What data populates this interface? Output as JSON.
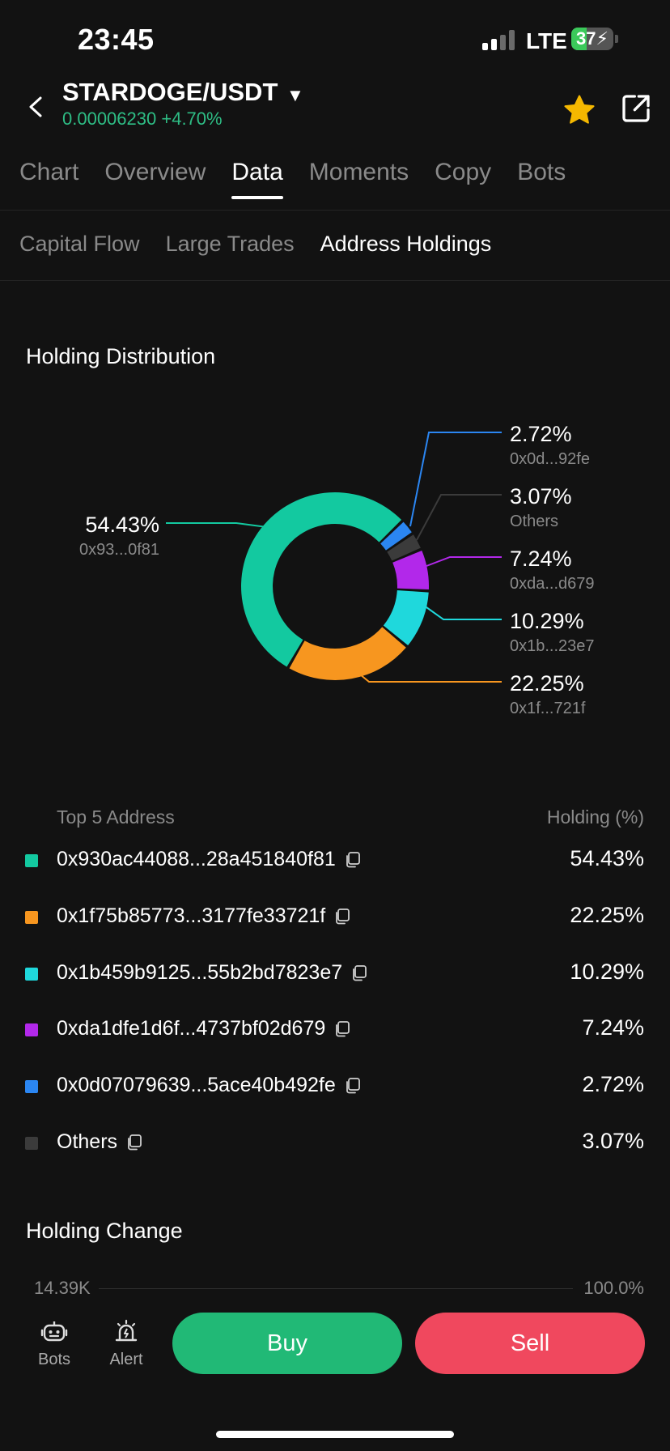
{
  "status": {
    "time": "23:45",
    "network": "LTE",
    "battery": "37"
  },
  "header": {
    "pair": "STARDOGE/USDT",
    "price": "0.00006230",
    "change": "+4.70%"
  },
  "tabs": [
    {
      "label": "Chart"
    },
    {
      "label": "Overview"
    },
    {
      "label": "Data",
      "active": true
    },
    {
      "label": "Moments"
    },
    {
      "label": "Copy"
    },
    {
      "label": "Bots"
    }
  ],
  "subtabs": [
    {
      "label": "Capital Flow"
    },
    {
      "label": "Large Trades"
    },
    {
      "label": "Address Holdings",
      "active": true
    }
  ],
  "distribution": {
    "title": "Holding Distribution",
    "labels": [
      {
        "pct": "54.43%",
        "addr": "0x93...0f81"
      },
      {
        "pct": "2.72%",
        "addr": "0x0d...92fe"
      },
      {
        "pct": "3.07%",
        "addr": "Others"
      },
      {
        "pct": "7.24%",
        "addr": "0xda...d679"
      },
      {
        "pct": "10.29%",
        "addr": "0x1b...23e7"
      },
      {
        "pct": "22.25%",
        "addr": "0x1f...721f"
      }
    ]
  },
  "chart_data": {
    "type": "pie",
    "title": "Holding Distribution",
    "slices": [
      {
        "label": "0x93...0f81",
        "value": 54.43,
        "color": "#13c9a0"
      },
      {
        "label": "0x1f...721f",
        "value": 22.25,
        "color": "#f7961f"
      },
      {
        "label": "0x1b...23e7",
        "value": 10.29,
        "color": "#1fd8dc"
      },
      {
        "label": "0xda...d679",
        "value": 7.24,
        "color": "#b228ea"
      },
      {
        "label": "Others",
        "value": 3.07,
        "color": "#3b3b3b"
      },
      {
        "label": "0x0d...92fe",
        "value": 2.72,
        "color": "#2b86f2"
      }
    ]
  },
  "table": {
    "col_address": "Top 5 Address",
    "col_holding": "Holding (%)",
    "rows": [
      {
        "address": "0x930ac44088...28a451840f81",
        "pct": "54.43%",
        "color": "#13c9a0"
      },
      {
        "address": "0x1f75b85773...3177fe33721f",
        "pct": "22.25%",
        "color": "#f7961f"
      },
      {
        "address": "0x1b459b9125...55b2bd7823e7",
        "pct": "10.29%",
        "color": "#1fd8dc"
      },
      {
        "address": "0xda1dfe1d6f...4737bf02d679",
        "pct": "7.24%",
        "color": "#b228ea"
      },
      {
        "address": "0x0d07079639...5ace40b492fe",
        "pct": "2.72%",
        "color": "#2b86f2"
      },
      {
        "address": "Others",
        "pct": "3.07%",
        "color": "#3b3b3b"
      }
    ]
  },
  "holding_change": {
    "title": "Holding Change",
    "left_value": "14.39K",
    "right_value": "100.0%"
  },
  "bottom": {
    "bots": "Bots",
    "alert": "Alert",
    "buy": "Buy",
    "sell": "Sell"
  }
}
